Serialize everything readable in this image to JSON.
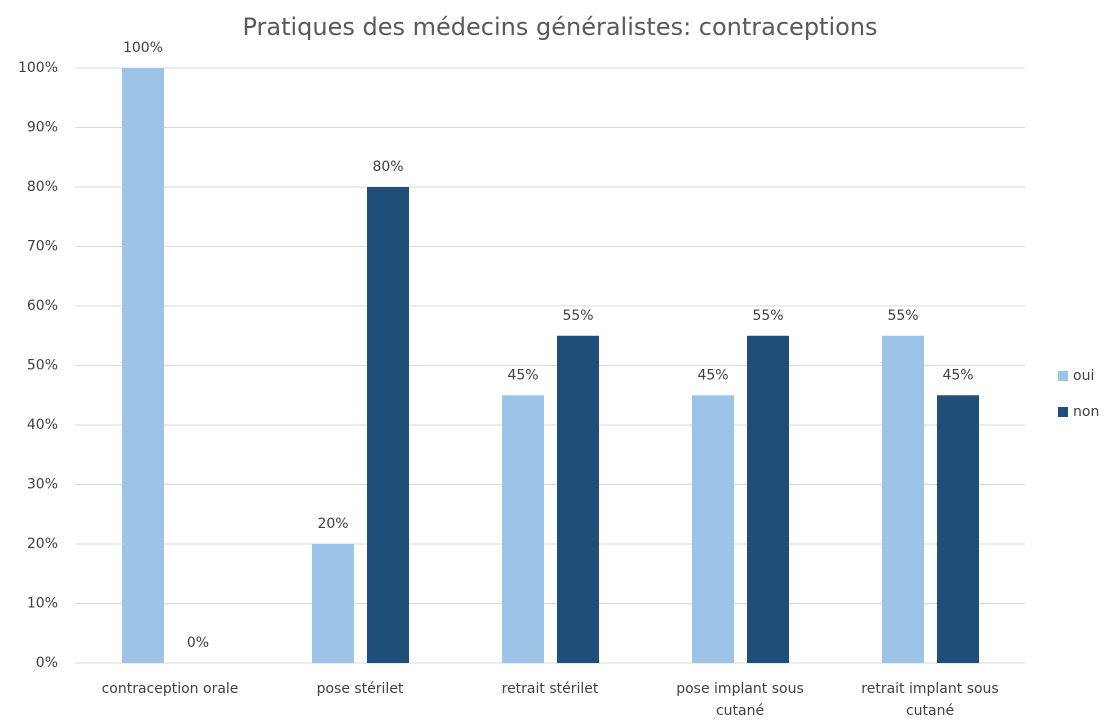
{
  "chart_data": {
    "type": "bar",
    "title": "Pratiques des médecins généralistes: contraceptions",
    "categories": [
      "contraception orale",
      "pose stérilet",
      "retrait stérilet",
      "pose implant sous cutané",
      "retrait implant sous cutané"
    ],
    "series": [
      {
        "name": "oui",
        "color": "#9dc3e6",
        "values": [
          100,
          20,
          45,
          45,
          55
        ],
        "value_labels": [
          "100%",
          "20%",
          "45%",
          "45%",
          "55%"
        ]
      },
      {
        "name": "non",
        "color": "#1f4e79",
        "values": [
          0,
          80,
          55,
          55,
          45
        ],
        "value_labels": [
          "0%",
          "80%",
          "55%",
          "55%",
          "45%"
        ]
      }
    ],
    "ylim": [
      0,
      100
    ],
    "yticks": [
      {
        "value": 0,
        "label": "0%"
      },
      {
        "value": 10,
        "label": "10%"
      },
      {
        "value": 20,
        "label": "20%"
      },
      {
        "value": 30,
        "label": "30%"
      },
      {
        "value": 40,
        "label": "40%"
      },
      {
        "value": 50,
        "label": "50%"
      },
      {
        "value": 60,
        "label": "60%"
      },
      {
        "value": 70,
        "label": "70%"
      },
      {
        "value": 80,
        "label": "80%"
      },
      {
        "value": 90,
        "label": "90%"
      },
      {
        "value": 100,
        "label": "100%"
      }
    ],
    "grid": true,
    "legend": "right"
  }
}
